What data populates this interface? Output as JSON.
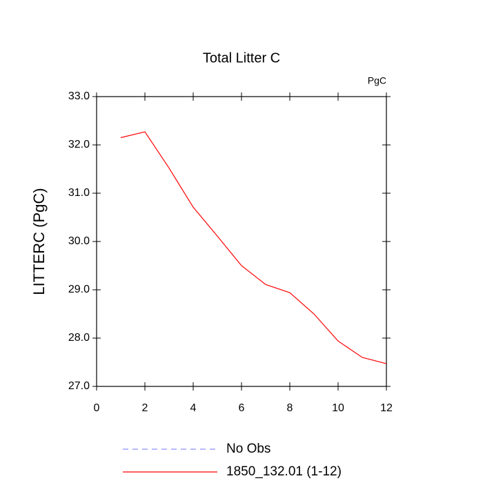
{
  "chart_data": {
    "type": "line",
    "title": "Total Litter C",
    "unit_label": "PgC",
    "ylabel": "LITTERC  (PgC)",
    "x": [
      1,
      2,
      3,
      4,
      5,
      6,
      7,
      8,
      9,
      10,
      11,
      12
    ],
    "xlim": [
      0,
      12
    ],
    "xticks": [
      0,
      2,
      4,
      6,
      8,
      10,
      12
    ],
    "ylim": [
      27,
      33
    ],
    "yticks": [
      {
        "value": 27,
        "label": "27.0"
      },
      {
        "value": 28,
        "label": "28.0"
      },
      {
        "value": 29,
        "label": "29.0"
      },
      {
        "value": 30,
        "label": "30.0"
      },
      {
        "value": 31,
        "label": "31.0"
      },
      {
        "value": 32,
        "label": "32.0"
      },
      {
        "value": 33,
        "label": "33.0"
      }
    ],
    "grid": false,
    "series": [
      {
        "name": "No Obs",
        "color": "#8c8cff",
        "dashed": true,
        "values": [
          null,
          null,
          null,
          null,
          null,
          null,
          null,
          null,
          null,
          null,
          null,
          null
        ]
      },
      {
        "name": "1850_132.01 (1-12)",
        "color": "#ff0000",
        "dashed": false,
        "values": [
          32.15,
          32.27,
          31.52,
          30.71,
          30.11,
          29.5,
          29.11,
          28.94,
          28.5,
          27.94,
          27.6,
          27.47
        ]
      }
    ]
  }
}
